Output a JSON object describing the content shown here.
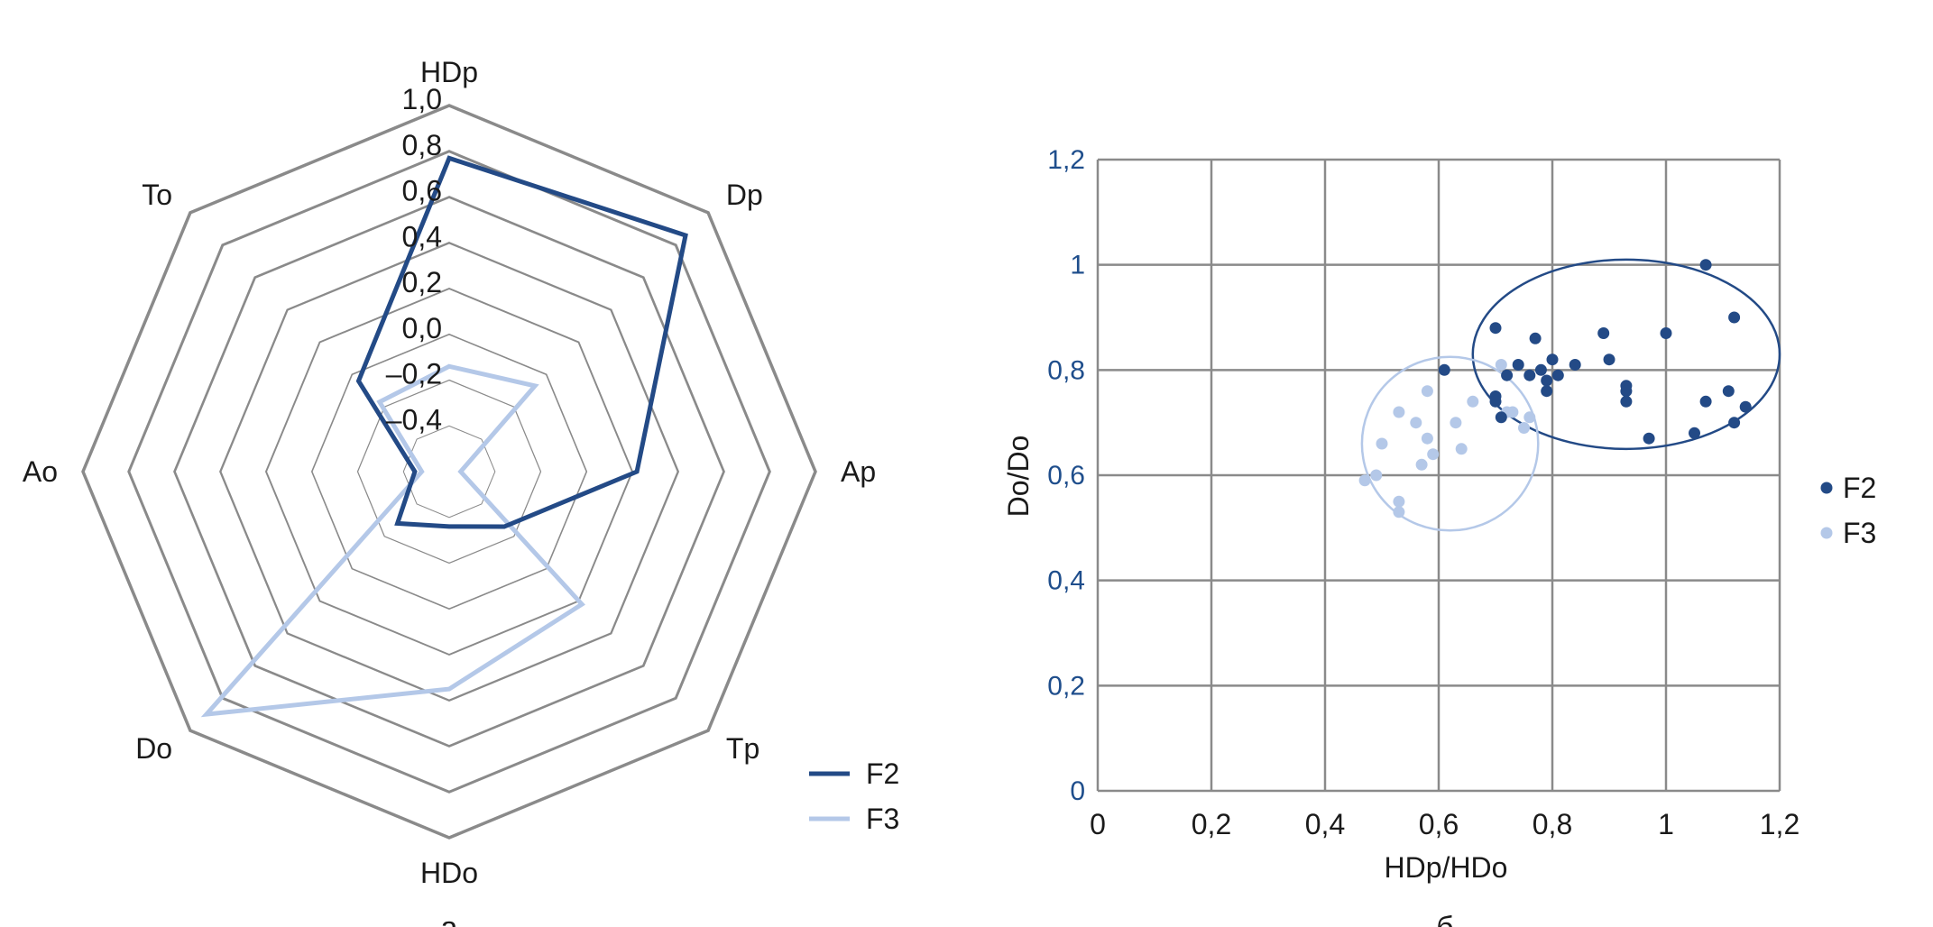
{
  "colors": {
    "F2": "#234a86",
    "F3": "#b4c8e8",
    "grid": "#8a8a8a",
    "ytick": "#1f4e8c"
  },
  "panel_labels": [
    "а",
    "б"
  ],
  "chart_data": [
    {
      "type": "radar",
      "axes": [
        "HDp",
        "Dp",
        "Ap",
        "Tp",
        "HDo",
        "Do",
        "Ao",
        "To"
      ],
      "rmin": -0.6,
      "rmax": 1.0,
      "ring_values": [
        -0.4,
        -0.2,
        0.0,
        0.2,
        0.4,
        0.6,
        0.8,
        1.0
      ],
      "tick_labels": [
        "–0,4",
        "–0,2",
        "0,0",
        "0,2",
        "0,4",
        "0,6",
        "0,8",
        "1,0"
      ],
      "series": [
        {
          "name": "F2",
          "values": [
            0.77,
            0.86,
            0.22,
            -0.26,
            -0.36,
            -0.28,
            -0.45,
            -0.04
          ]
        },
        {
          "name": "F3",
          "values": [
            -0.14,
            -0.07,
            -0.55,
            0.22,
            0.35,
            0.9,
            -0.48,
            -0.17
          ]
        }
      ],
      "legend": "bottom-right"
    },
    {
      "type": "scatter",
      "xlabel": "HDp/HDo",
      "ylabel": "Do/Do",
      "xlim": [
        0,
        1.2
      ],
      "ylim": [
        0,
        1.2
      ],
      "x_ticks": [
        "0",
        "0,2",
        "0,4",
        "0,6",
        "0,8",
        "1",
        "1,2"
      ],
      "y_ticks": [
        "0",
        "0,2",
        "0,4",
        "0,6",
        "0,8",
        "1",
        "1,2"
      ],
      "grid": true,
      "legend": "right",
      "series": [
        {
          "name": "F2",
          "points": [
            [
              0.61,
              0.8
            ],
            [
              0.7,
              0.88
            ],
            [
              0.7,
              0.75
            ],
            [
              0.7,
              0.74
            ],
            [
              0.71,
              0.71
            ],
            [
              0.72,
              0.79
            ],
            [
              0.74,
              0.81
            ],
            [
              0.76,
              0.79
            ],
            [
              0.77,
              0.86
            ],
            [
              0.78,
              0.8
            ],
            [
              0.79,
              0.78
            ],
            [
              0.79,
              0.76
            ],
            [
              0.8,
              0.82
            ],
            [
              0.81,
              0.79
            ],
            [
              0.84,
              0.81
            ],
            [
              0.89,
              0.87
            ],
            [
              0.9,
              0.82
            ],
            [
              0.93,
              0.77
            ],
            [
              0.93,
              0.76
            ],
            [
              0.93,
              0.74
            ],
            [
              0.97,
              0.67
            ],
            [
              1.0,
              0.87
            ],
            [
              1.05,
              0.68
            ],
            [
              1.07,
              1.0
            ],
            [
              1.07,
              0.74
            ],
            [
              1.11,
              0.76
            ],
            [
              1.12,
              0.9
            ],
            [
              1.12,
              0.7
            ],
            [
              1.14,
              0.73
            ]
          ],
          "ellipse": {
            "cx": 0.93,
            "cy": 0.83,
            "rx": 0.27,
            "ry": 0.18
          }
        },
        {
          "name": "F3",
          "points": [
            [
              0.47,
              0.59
            ],
            [
              0.49,
              0.6
            ],
            [
              0.5,
              0.66
            ],
            [
              0.53,
              0.72
            ],
            [
              0.53,
              0.55
            ],
            [
              0.53,
              0.53
            ],
            [
              0.56,
              0.7
            ],
            [
              0.57,
              0.62
            ],
            [
              0.58,
              0.76
            ],
            [
              0.58,
              0.67
            ],
            [
              0.59,
              0.64
            ],
            [
              0.63,
              0.7
            ],
            [
              0.64,
              0.65
            ],
            [
              0.66,
              0.74
            ],
            [
              0.71,
              0.81
            ],
            [
              0.72,
              0.72
            ],
            [
              0.73,
              0.72
            ],
            [
              0.75,
              0.69
            ],
            [
              0.76,
              0.71
            ]
          ],
          "ellipse": {
            "cx": 0.62,
            "cy": 0.66,
            "rx": 0.155,
            "ry": 0.165
          }
        }
      ]
    }
  ]
}
